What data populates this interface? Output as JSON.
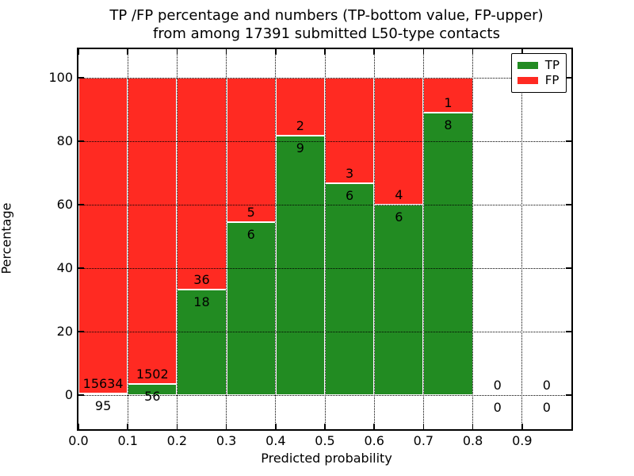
{
  "figure": {
    "title_line1": "TP /FP percentage and numbers (TP-bottom value, FP-upper)",
    "title_line2": "from among 17391 submitted L50-type contacts",
    "xlabel": "Predicted probability",
    "ylabel": "Percentage"
  },
  "chart_data": {
    "type": "bar",
    "stacked": true,
    "normalized": "percent",
    "title": "TP /FP percentage and numbers (TP-bottom value, FP-upper) from among 17391 submitted L50-type contacts",
    "xlabel": "Predicted probability",
    "ylabel": "Percentage",
    "total_submitted": 17391,
    "bin_width": 0.1,
    "bin_starts": [
      0.0,
      0.1,
      0.2,
      0.3,
      0.4,
      0.5,
      0.6,
      0.7,
      0.8,
      0.9
    ],
    "x_tick_labels": [
      "0.0",
      "0.1",
      "0.2",
      "0.3",
      "0.4",
      "0.5",
      "0.6",
      "0.7",
      "0.8",
      "0.9"
    ],
    "y_ticks": [
      0,
      20,
      40,
      60,
      80,
      100
    ],
    "xlim": [
      0.0,
      1.0
    ],
    "ylim": [
      -11,
      109
    ],
    "grid": true,
    "series": [
      {
        "name": "TP",
        "color": "#228b22",
        "counts": [
          95,
          56,
          18,
          6,
          9,
          6,
          6,
          8,
          0,
          0
        ]
      },
      {
        "name": "FP",
        "color": "#ff2a22",
        "counts": [
          15634,
          1502,
          36,
          5,
          2,
          3,
          4,
          1,
          0,
          0
        ]
      }
    ],
    "tp_percent_by_bin": [
      0.6,
      3.6,
      33.3,
      54.5,
      81.8,
      66.7,
      60.0,
      88.9,
      null,
      null
    ],
    "legend": {
      "position": "upper right",
      "entries": [
        {
          "label": "TP",
          "color": "#228b22"
        },
        {
          "label": "FP",
          "color": "#ff2a22"
        }
      ]
    }
  }
}
